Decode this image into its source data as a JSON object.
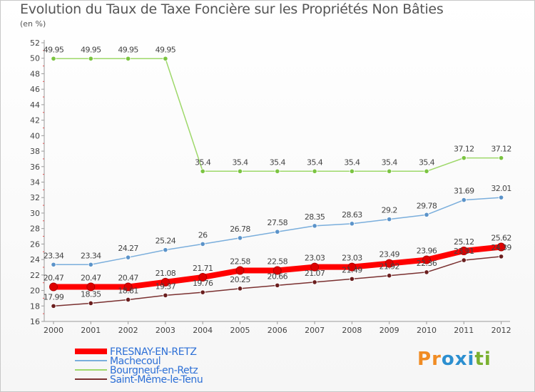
{
  "title": "Evolution du Taux de Taxe Foncière sur les Propriétés Non Bâties",
  "subtitle": "(en %)",
  "brand": {
    "text": "Proxiti",
    "letters": [
      "P",
      "r",
      "o",
      "x",
      "i",
      "t",
      "i"
    ],
    "colors": [
      "#f08c24",
      "#f08c24",
      "#2c8fd0",
      "#2c8fd0",
      "#2c8fd0",
      "#7ab030",
      "#7ab030"
    ]
  },
  "chart_data": {
    "type": "line",
    "title": "Evolution du Taux de Taxe Foncière sur les Propriétés Non Bâties",
    "ylabel": "(en %)",
    "xlabel": "",
    "x": [
      "2000",
      "2001",
      "2002",
      "2003",
      "2004",
      "2005",
      "2006",
      "2007",
      "2008",
      "2009",
      "2010",
      "2011",
      "2012"
    ],
    "ylim": [
      16,
      52
    ],
    "ytick_step": 2,
    "grid": false,
    "legend_position": "bottom-left",
    "series": [
      {
        "name": "FRESNAY-EN-RETZ",
        "color": "#ff0000",
        "marker_color": "#e00000",
        "emphasis": true,
        "values": [
          20.47,
          20.47,
          20.47,
          21.08,
          21.71,
          22.58,
          22.58,
          23.03,
          23.03,
          23.49,
          23.96,
          25.12,
          25.62
        ],
        "labels": [
          "20.47",
          "20.47",
          "20.47",
          "21.08",
          "21.71",
          "22.58",
          "22.58",
          "23.03",
          "23.03",
          "23.49",
          "23.96",
          "25.12",
          "25.62"
        ]
      },
      {
        "name": "Machecoul",
        "color": "#7aaedc",
        "marker_color": "#5b93c9",
        "emphasis": false,
        "values": [
          23.34,
          23.34,
          24.27,
          25.24,
          26,
          26.78,
          27.58,
          28.35,
          28.63,
          29.2,
          29.78,
          31.69,
          32.01
        ],
        "labels": [
          "23.34",
          "23.34",
          "24.27",
          "25.24",
          "26",
          "26.78",
          "27.58",
          "28.35",
          "28.63",
          "29.2",
          "29.78",
          "31.69",
          "32.01"
        ]
      },
      {
        "name": "Bourgneuf-en-Retz",
        "color": "#9ed86a",
        "marker_color": "#7bc441",
        "emphasis": false,
        "values": [
          49.95,
          49.95,
          49.95,
          49.95,
          35.4,
          35.4,
          35.4,
          35.4,
          35.4,
          35.4,
          35.4,
          37.12,
          37.12
        ],
        "labels": [
          "49.95",
          "49.95",
          "49.95",
          "49.95",
          "35.4",
          "35.4",
          "35.4",
          "35.4",
          "35.4",
          "35.4",
          "35.4",
          "37.12",
          "37.12"
        ]
      },
      {
        "name": "Saint-Même-le-Tenu",
        "color": "#7a3030",
        "marker_color": "#6a1e1e",
        "emphasis": false,
        "values": [
          17.99,
          18.35,
          18.81,
          19.37,
          19.76,
          20.25,
          20.66,
          21.07,
          21.49,
          21.92,
          22.36,
          23.91,
          24.39
        ],
        "labels": [
          "17.99",
          "18.35",
          "18.81",
          "19.37",
          "19.76",
          "20.25",
          "20.66",
          "21.07",
          "21.49",
          "21.92",
          "22.36",
          "23.91",
          "24.39"
        ]
      }
    ]
  }
}
